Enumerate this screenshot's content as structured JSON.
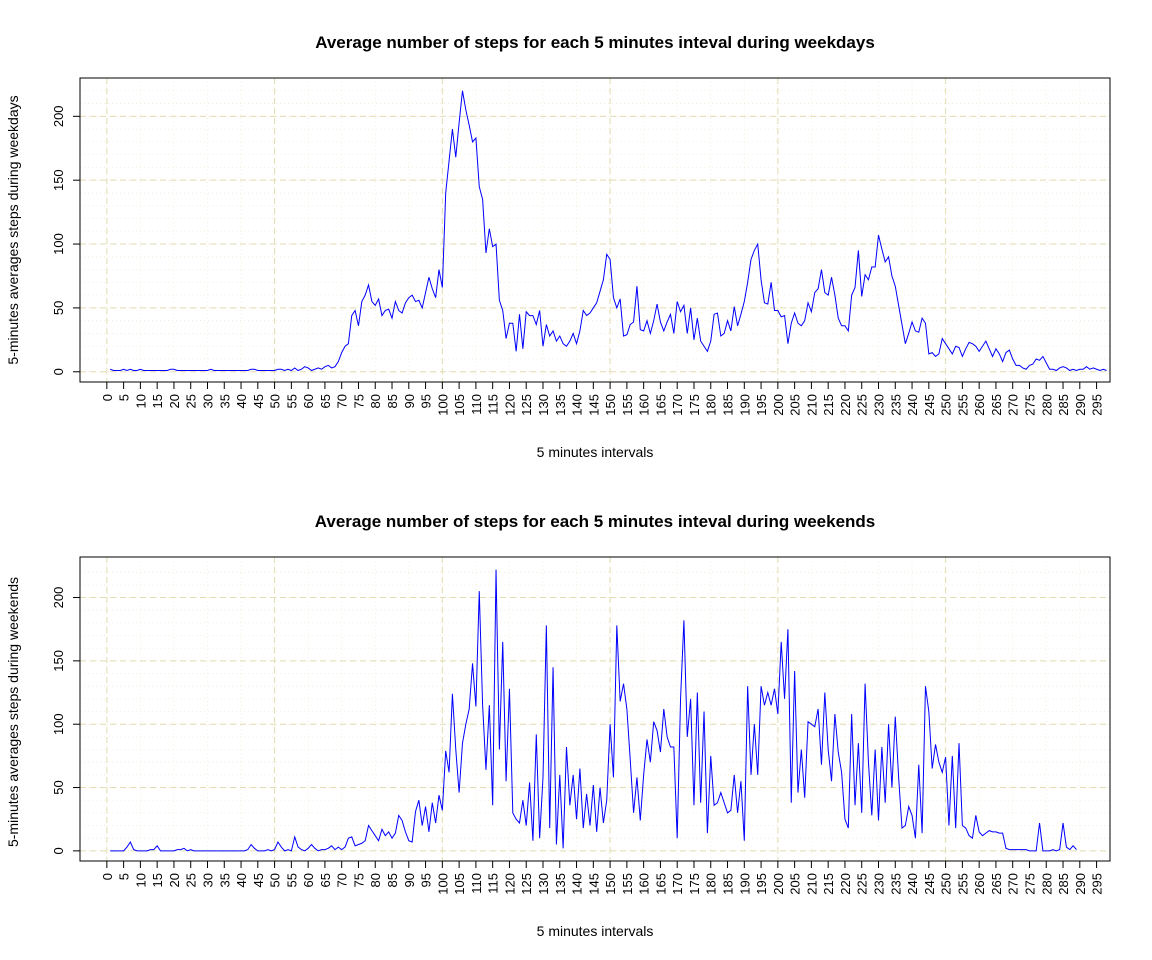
{
  "charts_meta": {
    "series_color": "#0000ff",
    "grid_major_color": "#e2dcb0",
    "grid_minor_color": "#f0ecd2"
  },
  "chart_data": [
    {
      "type": "line",
      "title": "Average number of steps for each 5 minutes inteval during weekdays",
      "xlabel": "5 minutes intervals",
      "ylabel": "5-minutes averages steps during weekdays",
      "xlim": [
        -8,
        299
      ],
      "ylim": [
        -8,
        230
      ],
      "x_ticks": [
        0,
        5,
        10,
        15,
        20,
        25,
        30,
        35,
        40,
        45,
        50,
        55,
        60,
        65,
        70,
        75,
        80,
        85,
        90,
        95,
        100,
        105,
        110,
        115,
        120,
        125,
        130,
        135,
        140,
        145,
        150,
        155,
        160,
        165,
        170,
        175,
        180,
        185,
        190,
        195,
        200,
        205,
        210,
        215,
        220,
        225,
        230,
        235,
        240,
        245,
        250,
        255,
        260,
        265,
        270,
        275,
        280,
        285,
        290,
        295
      ],
      "y_ticks": [
        0,
        50,
        100,
        150,
        200
      ],
      "grid": true,
      "legend": "none",
      "series": [
        {
          "x_start": 1,
          "x_step": 1,
          "values": [
            2,
            1,
            1,
            1,
            2,
            1,
            2,
            1,
            1,
            2,
            1,
            1,
            1,
            1,
            1,
            1,
            1,
            1,
            2,
            2,
            1,
            1,
            1,
            1,
            1,
            1,
            1,
            1,
            1,
            1,
            2,
            1,
            1,
            1,
            1,
            1,
            1,
            1,
            1,
            1,
            1,
            1,
            2,
            2,
            1,
            1,
            1,
            1,
            1,
            1,
            2,
            2,
            1,
            2,
            1,
            3,
            1,
            2,
            4,
            3,
            1,
            2,
            3,
            2,
            4,
            5,
            3,
            4,
            8,
            15,
            20,
            22,
            44,
            48,
            36,
            55,
            60,
            68,
            55,
            52,
            57,
            44,
            48,
            49,
            42,
            55,
            48,
            46,
            54,
            58,
            60,
            55,
            56,
            50,
            62,
            74,
            65,
            58,
            80,
            66,
            140,
            165,
            190,
            168,
            195,
            220,
            205,
            193,
            180,
            183,
            145,
            135,
            93,
            112,
            98,
            100,
            56,
            48,
            26,
            38,
            38,
            16,
            45,
            18,
            47,
            44,
            44,
            37,
            48,
            20,
            37,
            28,
            32,
            24,
            28,
            22,
            20,
            24,
            30,
            22,
            32,
            48,
            44,
            46,
            50,
            54,
            63,
            72,
            92,
            88,
            58,
            50,
            57,
            28,
            29,
            37,
            39,
            67,
            33,
            32,
            40,
            30,
            40,
            53,
            39,
            32,
            39,
            45,
            30,
            55,
            47,
            52,
            30,
            50,
            25,
            42,
            24,
            20,
            16,
            24,
            45,
            46,
            28,
            30,
            40,
            32,
            51,
            36,
            45,
            55,
            70,
            88,
            95,
            100,
            72,
            54,
            53,
            70,
            48,
            48,
            43,
            44,
            22,
            38,
            46,
            38,
            36,
            40,
            54,
            47,
            62,
            65,
            80,
            62,
            60,
            74,
            60,
            42,
            36,
            36,
            32,
            60,
            66,
            95,
            59,
            76,
            72,
            82,
            82,
            107,
            96,
            86,
            90,
            75,
            67,
            52,
            37,
            22,
            30,
            39,
            32,
            31,
            42,
            38,
            14,
            15,
            12,
            14,
            26,
            22,
            18,
            14,
            20,
            19,
            12,
            18,
            23,
            22,
            20,
            16,
            20,
            24,
            18,
            12,
            18,
            14,
            8,
            15,
            17,
            10,
            5,
            5,
            3,
            2,
            5,
            6,
            10,
            9,
            12,
            7,
            2,
            2,
            1,
            3,
            4,
            3,
            1,
            2,
            1,
            2,
            2,
            4,
            2,
            3,
            2,
            1,
            2,
            1
          ]
        }
      ]
    },
    {
      "type": "line",
      "title": "Average number of steps for each 5 minutes inteval during weekends",
      "xlabel": "5 minutes intervals",
      "ylabel": "5-minutes averages steps during weekends",
      "xlim": [
        -8,
        299
      ],
      "ylim": [
        -8,
        232
      ],
      "x_ticks": [
        0,
        5,
        10,
        15,
        20,
        25,
        30,
        35,
        40,
        45,
        50,
        55,
        60,
        65,
        70,
        75,
        80,
        85,
        90,
        95,
        100,
        105,
        110,
        115,
        120,
        125,
        130,
        135,
        140,
        145,
        150,
        155,
        160,
        165,
        170,
        175,
        180,
        185,
        190,
        195,
        200,
        205,
        210,
        215,
        220,
        225,
        230,
        235,
        240,
        245,
        250,
        255,
        260,
        265,
        270,
        275,
        280,
        285,
        290,
        295
      ],
      "y_ticks": [
        0,
        50,
        100,
        150,
        200
      ],
      "grid": true,
      "legend": "none",
      "series": [
        {
          "x_start": 1,
          "x_step": 1,
          "values": [
            0,
            0,
            0,
            0,
            0,
            3,
            7,
            1,
            0,
            0,
            0,
            0,
            1,
            1,
            4,
            0,
            0,
            0,
            0,
            0,
            1,
            1,
            2,
            0,
            1,
            0,
            0,
            0,
            0,
            0,
            0,
            0,
            0,
            0,
            0,
            0,
            0,
            0,
            0,
            0,
            0,
            1,
            5,
            2,
            0,
            0,
            0,
            1,
            0,
            1,
            7,
            3,
            0,
            1,
            0,
            11,
            3,
            1,
            0,
            2,
            5,
            2,
            0,
            1,
            1,
            2,
            4,
            1,
            3,
            1,
            3,
            10,
            11,
            4,
            5,
            6,
            8,
            20,
            16,
            12,
            8,
            17,
            12,
            15,
            10,
            14,
            28,
            24,
            15,
            8,
            7,
            31,
            40,
            20,
            35,
            15,
            38,
            22,
            44,
            32,
            79,
            62,
            124,
            80,
            46,
            85,
            100,
            112,
            148,
            114,
            205,
            115,
            64,
            115,
            36,
            222,
            80,
            165,
            55,
            128,
            30,
            25,
            22,
            40,
            20,
            54,
            8,
            92,
            10,
            58,
            178,
            18,
            145,
            5,
            60,
            2,
            82,
            36,
            60,
            25,
            65,
            18,
            45,
            20,
            52,
            15,
            50,
            22,
            40,
            100,
            58,
            178,
            118,
            132,
            112,
            72,
            30,
            58,
            24,
            60,
            88,
            70,
            102,
            95,
            78,
            112,
            90,
            82,
            82,
            10,
            120,
            182,
            90,
            120,
            36,
            125,
            38,
            110,
            14,
            75,
            36,
            38,
            46,
            38,
            30,
            32,
            60,
            30,
            55,
            8,
            130,
            60,
            100,
            60,
            130,
            115,
            125,
            115,
            128,
            108,
            165,
            120,
            175,
            38,
            142,
            46,
            80,
            42,
            102,
            100,
            98,
            112,
            68,
            125,
            80,
            55,
            108,
            78,
            62,
            25,
            18,
            108,
            36,
            85,
            30,
            132,
            70,
            28,
            80,
            24,
            82,
            38,
            100,
            50,
            106,
            58,
            18,
            20,
            35,
            28,
            10,
            68,
            14,
            130,
            110,
            65,
            84,
            70,
            62,
            74,
            20,
            75,
            18,
            85,
            20,
            18,
            12,
            10,
            28,
            15,
            12,
            14,
            16,
            15,
            15,
            14,
            14,
            2,
            1,
            1,
            1,
            1,
            1,
            1,
            0,
            0,
            0,
            22,
            0,
            0,
            0,
            1,
            0,
            1,
            22,
            3,
            1,
            4,
            1
          ]
        }
      ]
    }
  ]
}
